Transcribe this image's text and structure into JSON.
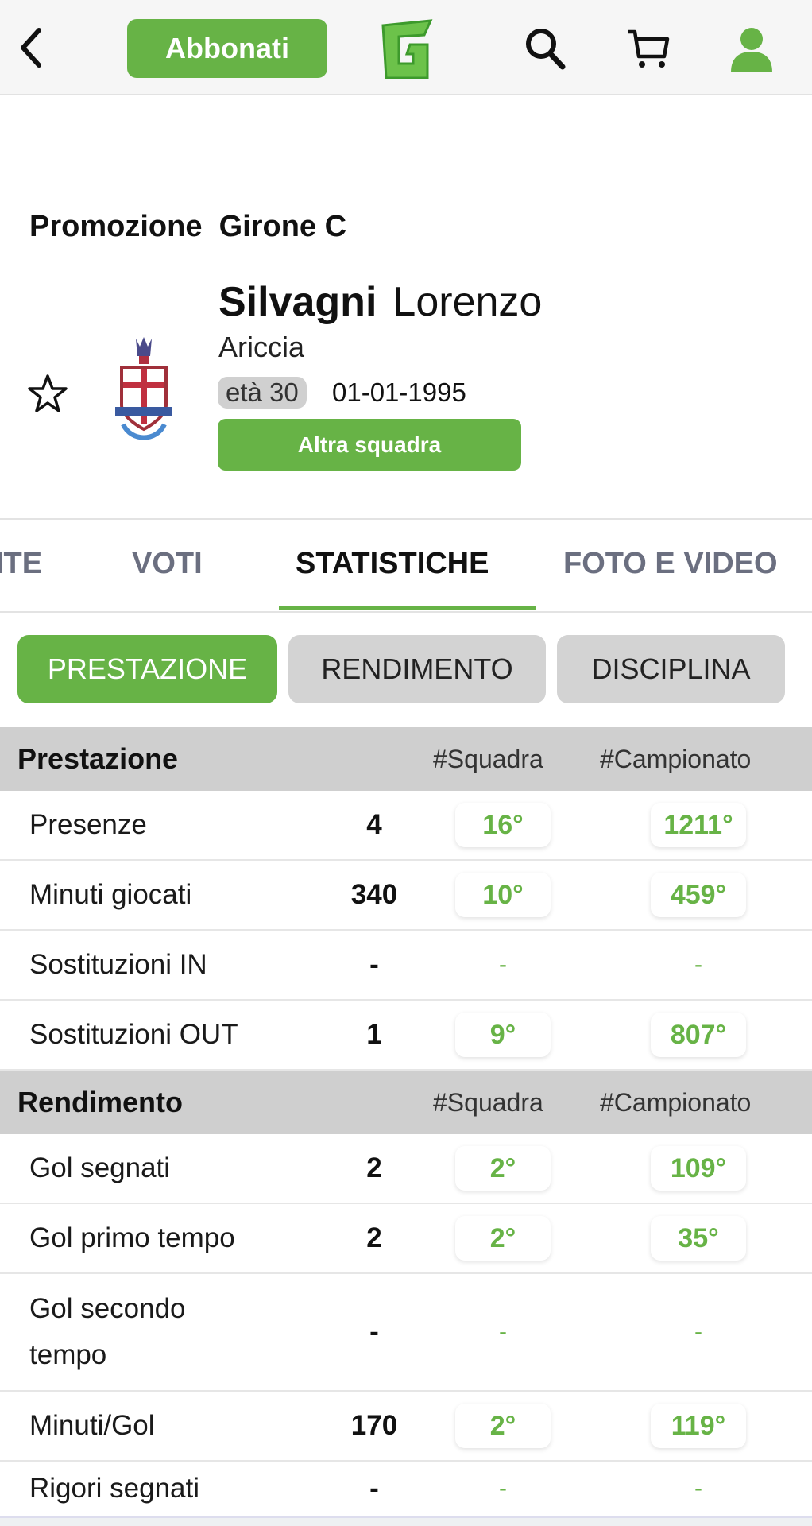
{
  "header": {
    "subscribe_label": "Abbonati",
    "logo_letter": "G",
    "icons": [
      "chevron-left-icon",
      "search-icon",
      "cart-icon",
      "user-icon"
    ],
    "accent": "#67b346"
  },
  "profile": {
    "league": "Promozione  Girone C",
    "surname": "Silvagni",
    "first_name": "Lorenzo",
    "team": "Ariccia",
    "age": "età 30",
    "dob": "01-01-1995",
    "other_team_label": "Altra squadra"
  },
  "tabs": [
    {
      "label": "ITE"
    },
    {
      "label": "VOTI"
    },
    {
      "label": "STATISTICHE",
      "active": true
    },
    {
      "label": "FOTO E VIDEO"
    }
  ],
  "filters": [
    {
      "label": "PRESTAZIONE",
      "active": true
    },
    {
      "label": "RENDIMENTO"
    },
    {
      "label": "DISCIPLINA"
    }
  ],
  "sections": [
    {
      "title": "Prestazione",
      "col_team": "#Squadra",
      "col_league": "#Campionato",
      "rows": [
        {
          "label": "Presenze",
          "value": "4",
          "team_rank": "16°",
          "league_rank": "1211°"
        },
        {
          "label": "Minuti giocati",
          "value": "340",
          "team_rank": "10°",
          "league_rank": "459°"
        },
        {
          "label": "Sostituzioni IN",
          "value": "-",
          "team_rank": "-",
          "league_rank": "-"
        },
        {
          "label": "Sostituzioni OUT",
          "value": "1",
          "team_rank": "9°",
          "league_rank": "807°"
        }
      ]
    },
    {
      "title": "Rendimento",
      "col_team": "#Squadra",
      "col_league": "#Campionato",
      "rows": [
        {
          "label": "Gol segnati",
          "value": "2",
          "team_rank": "2°",
          "league_rank": "109°"
        },
        {
          "label": "Gol primo tempo",
          "value": "2",
          "team_rank": "2°",
          "league_rank": "35°"
        },
        {
          "label": "Gol secondo tempo",
          "value": "-",
          "team_rank": "-",
          "league_rank": "-"
        },
        {
          "label": "Minuti/Gol",
          "value": "170",
          "team_rank": "2°",
          "league_rank": "119°"
        },
        {
          "label": "Rigori segnati",
          "value": "-",
          "team_rank": "-",
          "league_rank": "-"
        }
      ]
    }
  ]
}
